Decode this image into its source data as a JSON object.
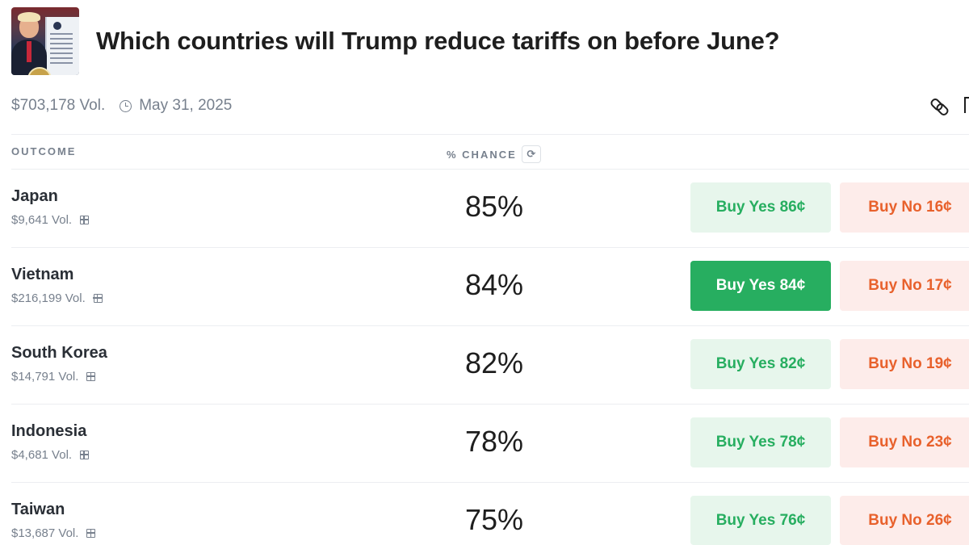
{
  "market": {
    "title": "Which countries will Trump reduce tariffs on before June?",
    "volume": "$703,178 Vol.",
    "end_date": "May 31, 2025"
  },
  "icons": {
    "link": "link-icon",
    "bookmark": "bookmark-icon",
    "clock": "clock-icon",
    "refresh": "refresh-icon",
    "gift": "gift-icon"
  },
  "table": {
    "col_outcome": "OUTCOME",
    "col_chance": "% CHANCE",
    "refresh_glyph": "⟳",
    "rows": [
      {
        "name": "Japan",
        "volume": "$9,641 Vol.",
        "chance": "85%",
        "yes": "Buy Yes 86¢",
        "no": "Buy No 16¢"
      },
      {
        "name": "Vietnam",
        "volume": "$216,199 Vol.",
        "chance": "84%",
        "yes": "Buy Yes 84¢",
        "no": "Buy No 17¢"
      },
      {
        "name": "South Korea",
        "volume": "$14,791 Vol.",
        "chance": "82%",
        "yes": "Buy Yes 82¢",
        "no": "Buy No 19¢"
      },
      {
        "name": "Indonesia",
        "volume": "$4,681 Vol.",
        "chance": "78%",
        "yes": "Buy Yes 78¢",
        "no": "Buy No 23¢"
      },
      {
        "name": "Taiwan",
        "volume": "$13,687 Vol.",
        "chance": "75%",
        "yes": "Buy Yes 76¢",
        "no": "Buy No 26¢"
      }
    ]
  },
  "colors": {
    "yes_text": "#27ae60",
    "yes_bg": "#e7f6ec",
    "yes_active_bg": "#27ae60",
    "no_text": "#e8612c",
    "no_bg": "#fdecea",
    "muted_text": "#77808d"
  }
}
